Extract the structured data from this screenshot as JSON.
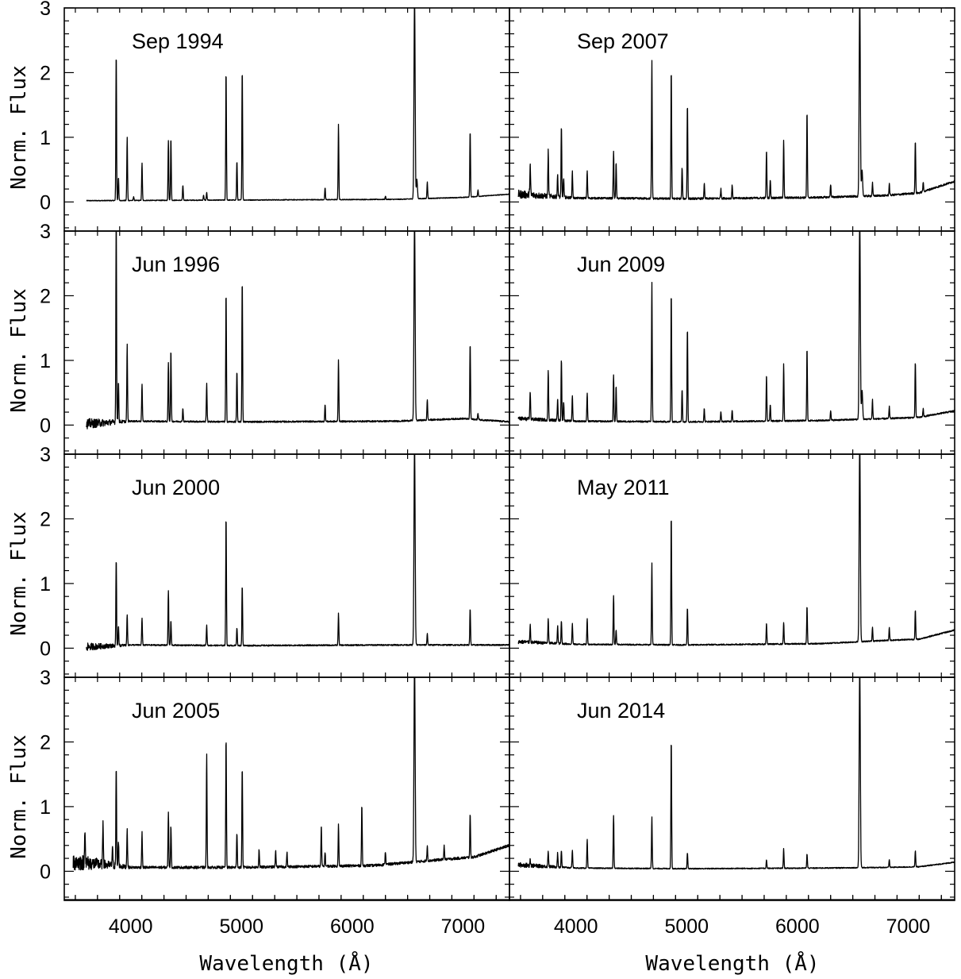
{
  "chart_data": {
    "type": "line",
    "ylabel": "Norm. Flux",
    "xlabel": "Wavelength (Å)",
    "xlim": [
      3400,
      7420
    ],
    "ylim": [
      -0.45,
      3.0
    ],
    "x_ticks": [
      4000,
      5000,
      6000,
      7000
    ],
    "y_ticks": [
      0,
      1,
      2,
      3
    ],
    "grid": false,
    "layout": "4 rows x 2 columns, shared axes",
    "panels": [
      {
        "title": "Sep 1994",
        "x_start": 3600,
        "x_end": 7420,
        "noise": 0.006,
        "noise_edge": 0,
        "baseline": [
          [
            3600,
            0.02
          ],
          [
            5000,
            0.03
          ],
          [
            6400,
            0.04
          ],
          [
            7000,
            0.07
          ],
          [
            7420,
            0.12
          ]
        ],
        "lines": [
          [
            3869,
            2.28
          ],
          [
            3889,
            0.36
          ],
          [
            3968,
            0.98
          ],
          [
            4026,
            0.06
          ],
          [
            4102,
            0.58
          ],
          [
            4340,
            0.92
          ],
          [
            4363,
            0.96
          ],
          [
            4471,
            0.23
          ],
          [
            4658,
            0.08
          ],
          [
            4686,
            0.12
          ],
          [
            4861,
            2.0
          ],
          [
            4959,
            0.6
          ],
          [
            5007,
            2.02
          ],
          [
            5755,
            0.18
          ],
          [
            5876,
            1.16
          ],
          [
            6300,
            0.05
          ],
          [
            6563,
            3.2
          ],
          [
            6584,
            0.3
          ],
          [
            6678,
            0.26
          ],
          [
            7065,
            1.02
          ],
          [
            7136,
            0.1
          ]
        ]
      },
      {
        "title": "Sep 2007",
        "x_start": 3480,
        "x_end": 7420,
        "noise": 0.015,
        "noise_edge": 0.05,
        "baseline": [
          [
            3480,
            0.12
          ],
          [
            4000,
            0.06
          ],
          [
            5000,
            0.05
          ],
          [
            6200,
            0.07
          ],
          [
            6800,
            0.1
          ],
          [
            7100,
            0.14
          ],
          [
            7420,
            0.32
          ]
        ],
        "lines": [
          [
            3587,
            0.48
          ],
          [
            3750,
            0.7
          ],
          [
            3835,
            0.35
          ],
          [
            3869,
            1.08
          ],
          [
            3889,
            0.3
          ],
          [
            3968,
            0.4
          ],
          [
            4102,
            0.42
          ],
          [
            4340,
            0.72
          ],
          [
            4363,
            0.55
          ],
          [
            4686,
            2.13
          ],
          [
            4861,
            2.0
          ],
          [
            4959,
            0.48
          ],
          [
            5007,
            1.46
          ],
          [
            5159,
            0.23
          ],
          [
            5309,
            0.15
          ],
          [
            5411,
            0.2
          ],
          [
            5721,
            0.75
          ],
          [
            5755,
            0.28
          ],
          [
            5876,
            0.9
          ],
          [
            6087,
            1.33
          ],
          [
            6300,
            0.2
          ],
          [
            6563,
            3.2
          ],
          [
            6584,
            0.4
          ],
          [
            6678,
            0.2
          ],
          [
            6830,
            0.18
          ],
          [
            7065,
            0.82
          ],
          [
            7136,
            0.15
          ]
        ]
      },
      {
        "title": "Jun 1996",
        "x_start": 3600,
        "x_end": 7420,
        "noise": 0.012,
        "noise_edge": 0.07,
        "baseline": [
          [
            3600,
            0.02
          ],
          [
            4000,
            0.06
          ],
          [
            5000,
            0.05
          ],
          [
            6400,
            0.06
          ],
          [
            7000,
            0.1
          ],
          [
            7420,
            0.05
          ]
        ],
        "lines": [
          [
            3869,
            3.2
          ],
          [
            3889,
            0.65
          ],
          [
            3968,
            1.18
          ],
          [
            4102,
            0.58
          ],
          [
            4340,
            0.9
          ],
          [
            4363,
            1.1
          ],
          [
            4471,
            0.2
          ],
          [
            4686,
            0.6
          ],
          [
            4861,
            2.0
          ],
          [
            4959,
            0.78
          ],
          [
            5007,
            2.2
          ],
          [
            5755,
            0.26
          ],
          [
            5876,
            0.96
          ],
          [
            6563,
            3.2
          ],
          [
            6678,
            0.32
          ],
          [
            7065,
            1.18
          ],
          [
            7136,
            0.1
          ]
        ]
      },
      {
        "title": "Jun 2009",
        "x_start": 3480,
        "x_end": 7420,
        "noise": 0.012,
        "noise_edge": 0.02,
        "baseline": [
          [
            3480,
            0.1
          ],
          [
            4000,
            0.06
          ],
          [
            5000,
            0.05
          ],
          [
            6200,
            0.07
          ],
          [
            6800,
            0.1
          ],
          [
            7100,
            0.12
          ],
          [
            7420,
            0.22
          ]
        ],
        "lines": [
          [
            3587,
            0.45
          ],
          [
            3750,
            0.78
          ],
          [
            3835,
            0.35
          ],
          [
            3869,
            0.95
          ],
          [
            3889,
            0.3
          ],
          [
            3968,
            0.4
          ],
          [
            4102,
            0.44
          ],
          [
            4340,
            0.72
          ],
          [
            4363,
            0.55
          ],
          [
            4686,
            2.16
          ],
          [
            4861,
            2.0
          ],
          [
            4959,
            0.5
          ],
          [
            5007,
            1.46
          ],
          [
            5159,
            0.2
          ],
          [
            5309,
            0.15
          ],
          [
            5411,
            0.18
          ],
          [
            5721,
            0.72
          ],
          [
            5755,
            0.25
          ],
          [
            5876,
            0.88
          ],
          [
            6087,
            1.12
          ],
          [
            6300,
            0.15
          ],
          [
            6563,
            3.2
          ],
          [
            6584,
            0.45
          ],
          [
            6678,
            0.3
          ],
          [
            6830,
            0.18
          ],
          [
            7065,
            0.86
          ],
          [
            7136,
            0.12
          ]
        ]
      },
      {
        "title": "Jun 2000",
        "x_start": 3600,
        "x_end": 7420,
        "noise": 0.01,
        "noise_edge": 0.05,
        "baseline": [
          [
            3600,
            0.02
          ],
          [
            4000,
            0.05
          ],
          [
            5000,
            0.04
          ],
          [
            6400,
            0.05
          ],
          [
            7420,
            0.05
          ]
        ],
        "lines": [
          [
            3869,
            1.32
          ],
          [
            3889,
            0.32
          ],
          [
            3968,
            0.48
          ],
          [
            4102,
            0.42
          ],
          [
            4340,
            0.84
          ],
          [
            4363,
            0.38
          ],
          [
            4686,
            0.32
          ],
          [
            4861,
            2.0
          ],
          [
            4959,
            0.28
          ],
          [
            5007,
            0.93
          ],
          [
            5876,
            0.5
          ],
          [
            6563,
            3.2
          ],
          [
            6678,
            0.18
          ],
          [
            7065,
            0.56
          ]
        ]
      },
      {
        "title": "May 2011",
        "x_start": 3480,
        "x_end": 7420,
        "noise": 0.01,
        "noise_edge": 0.02,
        "baseline": [
          [
            3480,
            0.1
          ],
          [
            4000,
            0.06
          ],
          [
            5000,
            0.05
          ],
          [
            6200,
            0.07
          ],
          [
            6800,
            0.12
          ],
          [
            7100,
            0.14
          ],
          [
            7420,
            0.28
          ]
        ],
        "lines": [
          [
            3587,
            0.28
          ],
          [
            3750,
            0.38
          ],
          [
            3835,
            0.28
          ],
          [
            3869,
            0.35
          ],
          [
            3968,
            0.32
          ],
          [
            4102,
            0.4
          ],
          [
            4340,
            0.76
          ],
          [
            4363,
            0.22
          ],
          [
            4686,
            1.26
          ],
          [
            4861,
            2.0
          ],
          [
            5007,
            0.58
          ],
          [
            5721,
            0.33
          ],
          [
            5876,
            0.34
          ],
          [
            6087,
            0.58
          ],
          [
            6563,
            3.2
          ],
          [
            6678,
            0.22
          ],
          [
            6830,
            0.2
          ],
          [
            7065,
            0.45
          ]
        ]
      },
      {
        "title": "Jun 2005",
        "x_start": 3480,
        "x_end": 7420,
        "noise": 0.02,
        "noise_edge": 0.12,
        "baseline": [
          [
            3480,
            0.15
          ],
          [
            4000,
            0.06
          ],
          [
            5000,
            0.06
          ],
          [
            6200,
            0.09
          ],
          [
            6800,
            0.18
          ],
          [
            7100,
            0.22
          ],
          [
            7420,
            0.4
          ]
        ],
        "lines": [
          [
            3587,
            0.6
          ],
          [
            3750,
            0.66
          ],
          [
            3835,
            0.3
          ],
          [
            3869,
            1.5
          ],
          [
            3889,
            0.4
          ],
          [
            3968,
            0.6
          ],
          [
            4102,
            0.54
          ],
          [
            4340,
            0.84
          ],
          [
            4363,
            0.65
          ],
          [
            4686,
            1.75
          ],
          [
            4861,
            2.0
          ],
          [
            4959,
            0.54
          ],
          [
            5007,
            1.56
          ],
          [
            5159,
            0.28
          ],
          [
            5309,
            0.25
          ],
          [
            5411,
            0.22
          ],
          [
            5721,
            0.62
          ],
          [
            5755,
            0.22
          ],
          [
            5876,
            0.64
          ],
          [
            6087,
            0.95
          ],
          [
            6300,
            0.2
          ],
          [
            6563,
            3.2
          ],
          [
            6678,
            0.24
          ],
          [
            6830,
            0.22
          ],
          [
            7065,
            0.67
          ]
        ]
      },
      {
        "title": "Jun 2014",
        "x_start": 3480,
        "x_end": 7420,
        "noise": 0.008,
        "noise_edge": 0.03,
        "baseline": [
          [
            3480,
            0.1
          ],
          [
            4000,
            0.05
          ],
          [
            5000,
            0.04
          ],
          [
            6200,
            0.05
          ],
          [
            6800,
            0.06
          ],
          [
            7100,
            0.07
          ],
          [
            7420,
            0.14
          ]
        ],
        "lines": [
          [
            3587,
            0.1
          ],
          [
            3750,
            0.25
          ],
          [
            3835,
            0.22
          ],
          [
            3869,
            0.26
          ],
          [
            3968,
            0.28
          ],
          [
            4102,
            0.45
          ],
          [
            4340,
            0.82
          ],
          [
            4686,
            0.8
          ],
          [
            4861,
            2.0
          ],
          [
            5007,
            0.24
          ],
          [
            5721,
            0.13
          ],
          [
            5876,
            0.3
          ],
          [
            6087,
            0.22
          ],
          [
            6563,
            3.2
          ],
          [
            6830,
            0.12
          ],
          [
            7065,
            0.25
          ]
        ]
      }
    ]
  }
}
